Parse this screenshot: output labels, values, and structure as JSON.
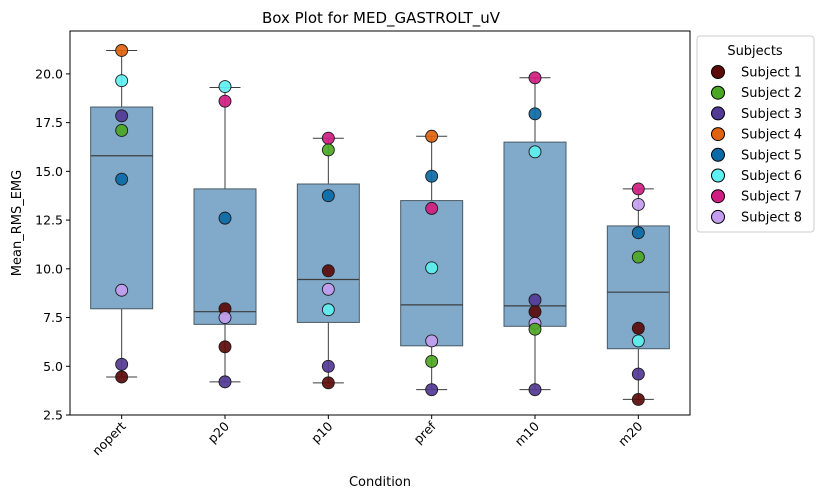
{
  "chart_data": {
    "type": "box",
    "title": "Box Plot for MED_GASTROLT_uV",
    "xlabel": "Condition",
    "ylabel": "Mean_RMS_EMG",
    "categories": [
      "nopert",
      "p20",
      "p10",
      "pref",
      "m10",
      "m20"
    ],
    "ylim": [
      2.5,
      22.2
    ],
    "yticks": [
      2.5,
      5.0,
      7.5,
      10.0,
      12.5,
      15.0,
      17.5,
      20.0
    ],
    "ytick_labels": [
      "2.5",
      "5.0",
      "7.5",
      "10.0",
      "12.5",
      "15.0",
      "17.5",
      "20.0"
    ],
    "grid": false,
    "box_color": "#6f9dc2",
    "boxes": [
      {
        "category": "nopert",
        "whisker_low": 4.45,
        "q1": 7.95,
        "median": 15.8,
        "q3": 18.3,
        "whisker_high": 21.2
      },
      {
        "category": "p20",
        "whisker_low": 4.2,
        "q1": 7.15,
        "median": 7.8,
        "q3": 14.1,
        "whisker_high": 19.3
      },
      {
        "category": "p10",
        "whisker_low": 4.15,
        "q1": 7.25,
        "median": 9.45,
        "q3": 14.35,
        "whisker_high": 16.7
      },
      {
        "category": "pref",
        "whisker_low": 3.8,
        "q1": 6.05,
        "median": 8.15,
        "q3": 13.5,
        "whisker_high": 16.8
      },
      {
        "category": "m10",
        "whisker_low": 3.8,
        "q1": 7.05,
        "median": 8.1,
        "q3": 16.5,
        "whisker_high": 19.8
      },
      {
        "category": "m20",
        "whisker_low": 3.3,
        "q1": 5.9,
        "median": 8.8,
        "q3": 12.2,
        "whisker_high": 14.1
      }
    ],
    "legend": {
      "title": "Subjects",
      "placement": "outside-right",
      "entries": [
        {
          "name": "Subject 1",
          "color": "#5c0a0a"
        },
        {
          "name": "Subject 2",
          "color": "#4ca823"
        },
        {
          "name": "Subject 3",
          "color": "#523a94"
        },
        {
          "name": "Subject 4",
          "color": "#e0630f"
        },
        {
          "name": "Subject 5",
          "color": "#0b6aa6"
        },
        {
          "name": "Subject 6",
          "color": "#5ef0f0"
        },
        {
          "name": "Subject 7",
          "color": "#d11d82"
        },
        {
          "name": "Subject 8",
          "color": "#c39ef0"
        }
      ]
    },
    "points": [
      {
        "category": "nopert",
        "subject": "Subject 4",
        "y": 21.2
      },
      {
        "category": "nopert",
        "subject": "Subject 6",
        "y": 19.65
      },
      {
        "category": "nopert",
        "subject": "Subject 3",
        "y": 17.85
      },
      {
        "category": "nopert",
        "subject": "Subject 2",
        "y": 17.1
      },
      {
        "category": "nopert",
        "subject": "Subject 5",
        "y": 14.6
      },
      {
        "category": "nopert",
        "subject": "Subject 8",
        "y": 8.9
      },
      {
        "category": "nopert",
        "subject": "Subject 3",
        "y": 5.1
      },
      {
        "category": "nopert",
        "subject": "Subject 1",
        "y": 4.45
      },
      {
        "category": "p20",
        "subject": "Subject 6",
        "y": 19.35
      },
      {
        "category": "p20",
        "subject": "Subject 7",
        "y": 18.6
      },
      {
        "category": "p20",
        "subject": "Subject 5",
        "y": 12.6
      },
      {
        "category": "p20",
        "subject": "Subject 1",
        "y": 7.95
      },
      {
        "category": "p20",
        "subject": "Subject 8",
        "y": 7.5
      },
      {
        "category": "p20",
        "subject": "Subject 1",
        "y": 6.0
      },
      {
        "category": "p20",
        "subject": "Subject 3",
        "y": 4.2
      },
      {
        "category": "p10",
        "subject": "Subject 7",
        "y": 16.7
      },
      {
        "category": "p10",
        "subject": "Subject 2",
        "y": 16.1
      },
      {
        "category": "p10",
        "subject": "Subject 5",
        "y": 13.75
      },
      {
        "category": "p10",
        "subject": "Subject 1",
        "y": 9.9
      },
      {
        "category": "p10",
        "subject": "Subject 8",
        "y": 8.95
      },
      {
        "category": "p10",
        "subject": "Subject 6",
        "y": 7.9
      },
      {
        "category": "p10",
        "subject": "Subject 3",
        "y": 5.0
      },
      {
        "category": "p10",
        "subject": "Subject 1",
        "y": 4.15
      },
      {
        "category": "pref",
        "subject": "Subject 4",
        "y": 16.8
      },
      {
        "category": "pref",
        "subject": "Subject 5",
        "y": 14.75
      },
      {
        "category": "pref",
        "subject": "Subject 7",
        "y": 13.1
      },
      {
        "category": "pref",
        "subject": "Subject 6",
        "y": 10.05
      },
      {
        "category": "pref",
        "subject": "Subject 8",
        "y": 6.3
      },
      {
        "category": "pref",
        "subject": "Subject 2",
        "y": 5.25
      },
      {
        "category": "pref",
        "subject": "Subject 3",
        "y": 3.8
      },
      {
        "category": "m10",
        "subject": "Subject 7",
        "y": 19.8
      },
      {
        "category": "m10",
        "subject": "Subject 5",
        "y": 17.95
      },
      {
        "category": "m10",
        "subject": "Subject 6",
        "y": 16.0
      },
      {
        "category": "m10",
        "subject": "Subject 3",
        "y": 8.4
      },
      {
        "category": "m10",
        "subject": "Subject 1",
        "y": 7.8
      },
      {
        "category": "m10",
        "subject": "Subject 8",
        "y": 7.2
      },
      {
        "category": "m10",
        "subject": "Subject 2",
        "y": 6.9
      },
      {
        "category": "m10",
        "subject": "Subject 3",
        "y": 3.8
      },
      {
        "category": "m20",
        "subject": "Subject 7",
        "y": 14.1
      },
      {
        "category": "m20",
        "subject": "Subject 8",
        "y": 13.3
      },
      {
        "category": "m20",
        "subject": "Subject 5",
        "y": 11.85
      },
      {
        "category": "m20",
        "subject": "Subject 2",
        "y": 10.6
      },
      {
        "category": "m20",
        "subject": "Subject 1",
        "y": 6.95
      },
      {
        "category": "m20",
        "subject": "Subject 6",
        "y": 6.3
      },
      {
        "category": "m20",
        "subject": "Subject 3",
        "y": 4.6
      },
      {
        "category": "m20",
        "subject": "Subject 1",
        "y": 3.3
      }
    ]
  }
}
